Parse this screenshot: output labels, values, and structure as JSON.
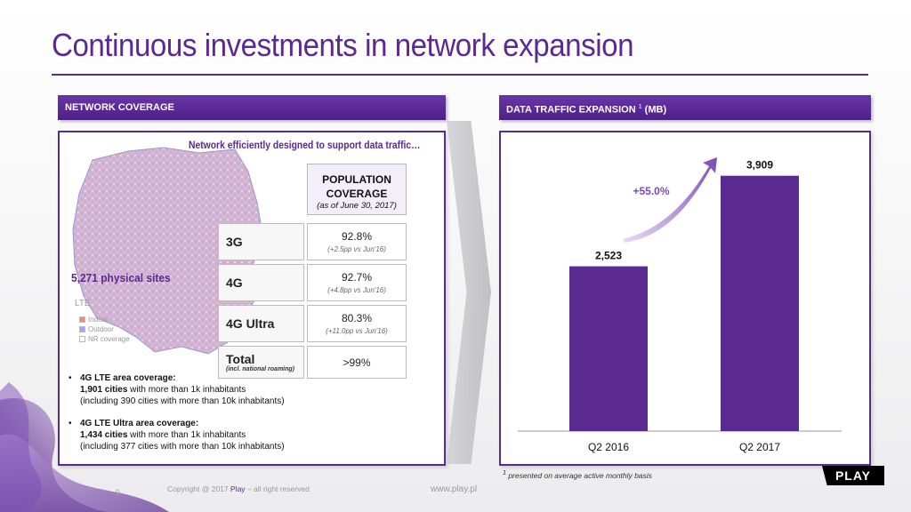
{
  "title": "Continuous investments in network expansion",
  "left_panel": {
    "header": "NETWORK COVERAGE",
    "subtitle": "Network efficiently designed to support data traffic…",
    "sites": "5,271 physical sites",
    "legend": {
      "title": "LTE",
      "items": [
        {
          "label": "Indoor",
          "color": "#f08a8a"
        },
        {
          "label": "Outdoor",
          "color": "#a9a6e6"
        },
        {
          "label": "NR coverage",
          "color": "#ffffff"
        }
      ]
    },
    "table": {
      "header": {
        "line1": "POPULATION",
        "line2": "COVERAGE",
        "line3": "(as of June 30, 2017)"
      },
      "rows": [
        {
          "label": "3G",
          "value": "92.8%",
          "delta": "(+2.5pp vs Jun'16)"
        },
        {
          "label": "4G",
          "value": "92.7%",
          "delta": "(+4.8pp vs Jun'16)"
        },
        {
          "label": "4G Ultra",
          "value": "80.3%",
          "delta": "(+11.0pp vs Jun'16)"
        },
        {
          "label": "Total",
          "sublabel": "(incl. national roaming)",
          "value": ">99%"
        }
      ]
    },
    "bullets": [
      {
        "head": "4G LTE area coverage:",
        "cities": "1,901 cities",
        "line1_rest": " with more than 1k inhabitants",
        "line2": "(including 390 cities with more than 10k inhabitants)"
      },
      {
        "head": "4G LTE Ultra area coverage:",
        "cities": "1,434 cities",
        "line1_rest": " with more than 1k inhabitants",
        "line2": "(including 377 cities with more than 10k inhabitants)"
      }
    ]
  },
  "right_panel": {
    "header": "DATA TRAFFIC EXPANSION",
    "header_sup": "1",
    "header_unit": " (MB)",
    "footnote": "presented on average active monthly basis",
    "footnote_sup": "1"
  },
  "chart_data": {
    "type": "bar",
    "categories": [
      "Q2 2016",
      "Q2 2017"
    ],
    "values": [
      2523,
      3909
    ],
    "value_labels": [
      "2,523",
      "3,909"
    ],
    "annotation": "+55.0%",
    "ylim": [
      0,
      4300
    ],
    "bar_color": "#5b2a91",
    "annotation_color": "#7b4bb5"
  },
  "footer": {
    "page": "9",
    "copyright_prefix": "Copyright @ 2017 ",
    "copyright_brand": "Play",
    "copyright_suffix": " – all right reserved",
    "website": "www.play.pl",
    "logo": "PLAY"
  },
  "colors": {
    "brand": "#5b2a91"
  }
}
